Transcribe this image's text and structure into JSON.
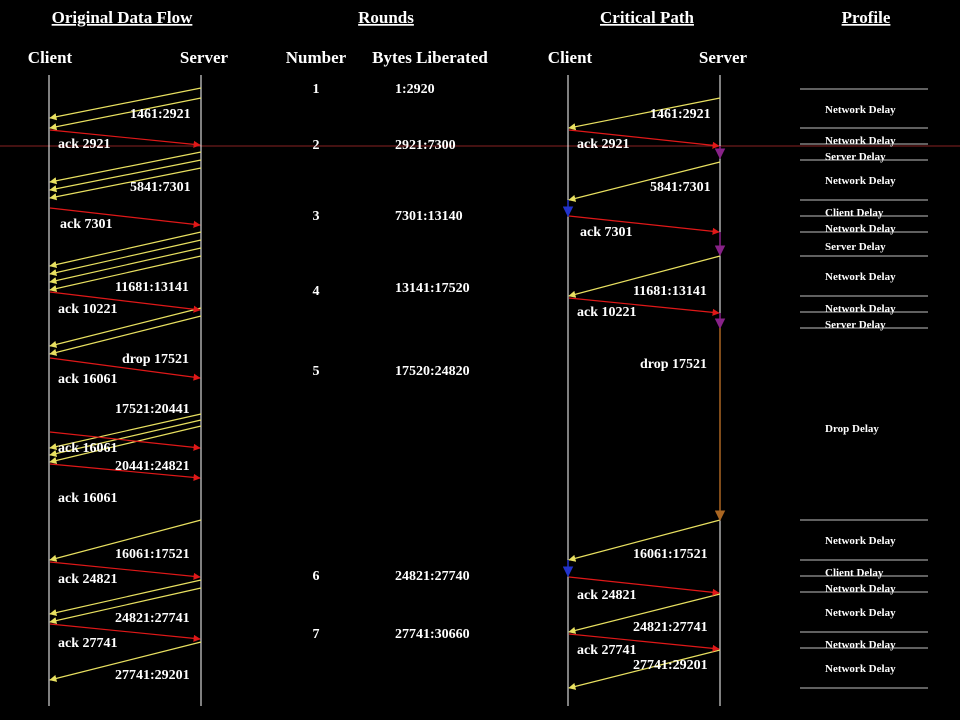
{
  "headers": {
    "original_flow": "Original Data Flow",
    "rounds": "Rounds",
    "critical_path": "Critical Path ",
    "profile": "Profile "
  },
  "subheaders": {
    "client_left": "Client",
    "server_left": "Server",
    "number": "Number",
    "bytes_liberated": "Bytes Liberated",
    "client_right": "Client",
    "server_right": "Server"
  },
  "rounds": [
    {
      "number": "1",
      "bytes": "1:2920"
    },
    {
      "number": "2",
      "bytes": "2921:7300"
    },
    {
      "number": "3",
      "bytes": "7301:13140"
    },
    {
      "number": "4",
      "bytes": "13141:17520"
    },
    {
      "number": "5",
      "bytes": "17520:24820"
    },
    {
      "number": "6",
      "bytes": "24821:27740"
    },
    {
      "number": "7",
      "bytes": "27741:30660"
    }
  ],
  "left_labels": [
    "1461:2921",
    "ack 2921",
    "5841:7301",
    "ack 7301",
    "11681:13141",
    "ack 10221",
    "drop 17521",
    "ack 16061",
    "17521:20441",
    "ack 16061",
    "20441:24821",
    "ack 16061",
    "16061:17521",
    "ack 24821",
    "24821:27741",
    "ack 27741",
    "27741:29201"
  ],
  "right_labels": [
    "1461:2921",
    "ack 2921",
    "5841:7301",
    "ack 7301",
    "11681:13141",
    "ack 10221",
    "drop 17521",
    "16061:17521",
    "ack 24821",
    "24821:27741",
    "ack 27741",
    "27741:29201"
  ],
  "profile_labels": [
    "Network Delay",
    "Network Delay",
    "Server Delay",
    "Network Delay",
    "Client Delay",
    "Network Delay",
    "Server Delay",
    "Network Delay",
    "Network Delay",
    "Server Delay",
    "Drop Delay",
    "Network Delay",
    "Client Delay",
    "Network Delay",
    "Network Delay",
    "Network Delay",
    "Network Delay"
  ],
  "colors": {
    "data": "#e8e060",
    "ack": "#e01818",
    "server_marker": "#882288",
    "client_marker": "#2233cc",
    "drop_marker": "#aa6622",
    "highlight_line": "#882222"
  }
}
